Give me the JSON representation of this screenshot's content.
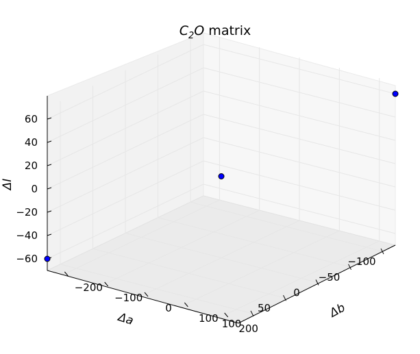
{
  "chart_data": {
    "type": "scatter3d",
    "title": "C",
    "title_sub": "2",
    "title_tail": "O",
    "title_suffix": " matrix",
    "xlabel": "Δa",
    "ylabel": "Δb",
    "zlabel": "ΔI",
    "xticks": [
      100,
      50,
      0,
      -50,
      -100
    ],
    "yticks": [
      -200,
      -100,
      0,
      100,
      200
    ],
    "zticks": [
      -60,
      -40,
      -20,
      0,
      20,
      40,
      60
    ],
    "xlim": [
      -120,
      120
    ],
    "ylim": [
      -240,
      240
    ],
    "zlim": [
      -70,
      70
    ],
    "grid": true,
    "marker_color": "#0000ff",
    "points": [
      {
        "x": 120,
        "y": -240,
        "z": -60
      },
      {
        "x": 0,
        "y": 0,
        "z": 0
      },
      {
        "x": -120,
        "y": 240,
        "z": 60
      }
    ]
  }
}
